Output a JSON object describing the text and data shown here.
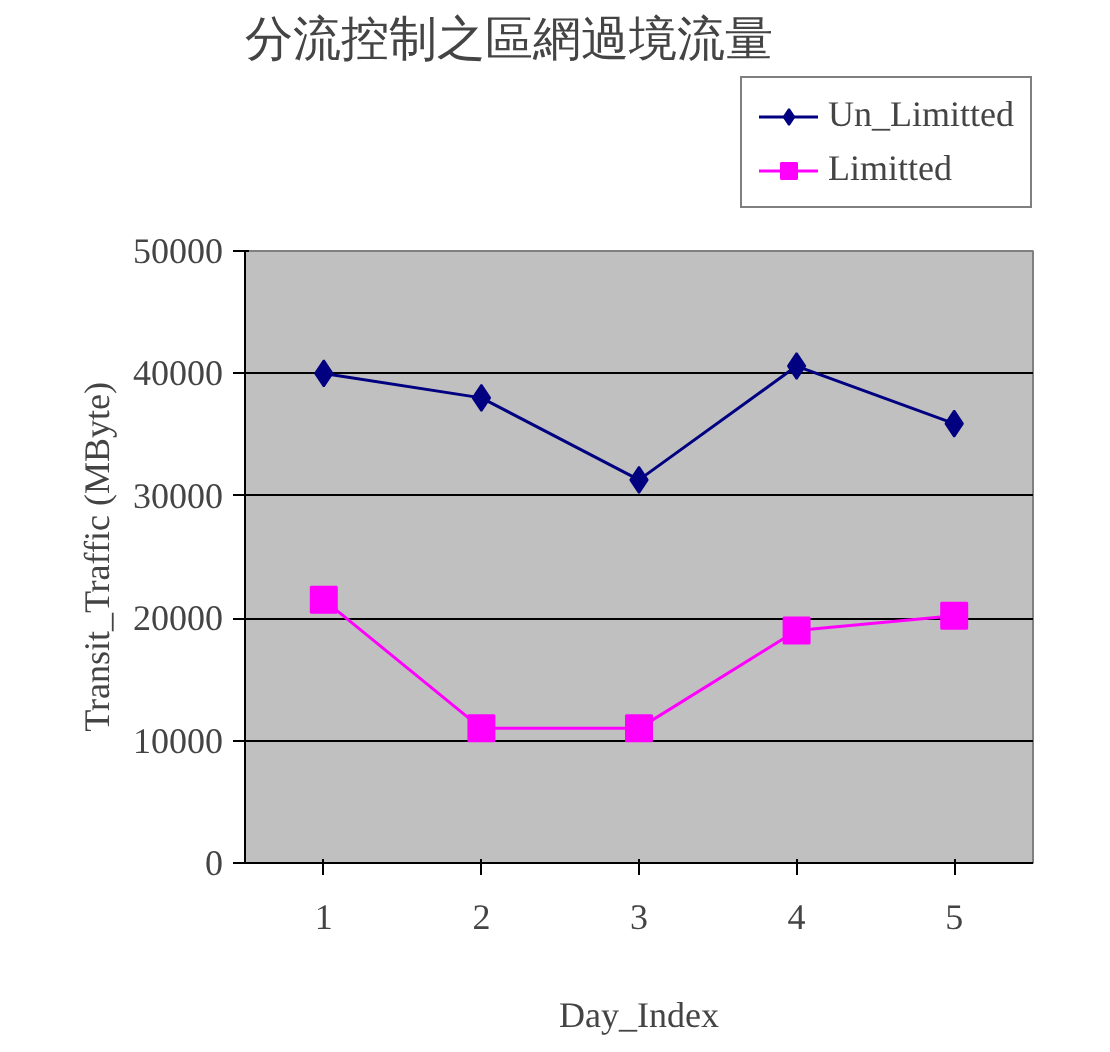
{
  "chart_data": {
    "type": "line",
    "title": "分流控制之區網過境流量",
    "xlabel": "Day_Index",
    "ylabel": "Transit_Traffic (MByte)",
    "x": [
      1,
      2,
      3,
      4,
      5
    ],
    "xlim": [
      0.5,
      5.5
    ],
    "xticks": [
      1,
      2,
      3,
      4,
      5
    ],
    "ylim": [
      0,
      50000
    ],
    "yticks": [
      0,
      10000,
      20000,
      30000,
      40000,
      50000
    ],
    "grid": "y",
    "legend": "top right",
    "series": [
      {
        "name": "Un_Limitted",
        "color": "#000080",
        "marker": "diamond",
        "values": [
          40000,
          38000,
          31300,
          40600,
          35900
        ]
      },
      {
        "name": "Limitted",
        "color": "#ff00ff",
        "marker": "square",
        "values": [
          21500,
          11000,
          11000,
          19000,
          20200
        ]
      }
    ]
  }
}
